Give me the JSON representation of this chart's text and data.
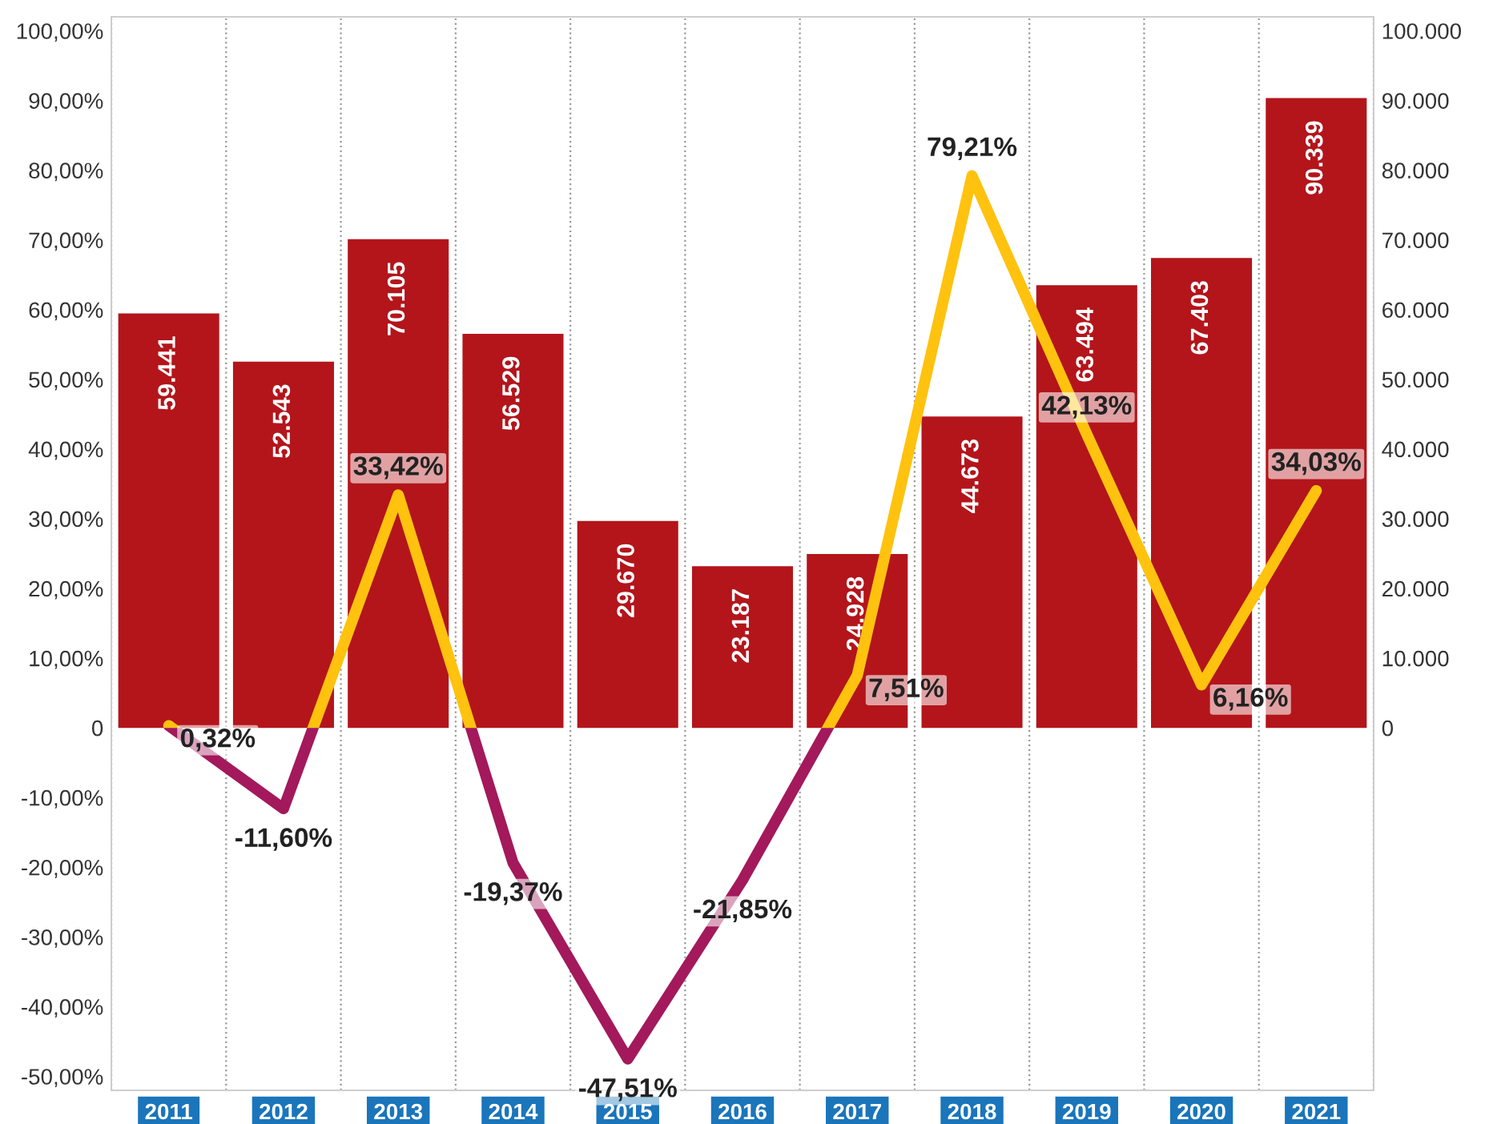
{
  "chart_data": {
    "type": "bar",
    "categories": [
      "2011",
      "2012",
      "2013",
      "2014",
      "2015",
      "2016",
      "2017",
      "2018",
      "2019",
      "2020",
      "2021"
    ],
    "series": [
      {
        "axis": "y2",
        "color": "#b3151b",
        "values": [
          59441,
          52543,
          70105,
          56529,
          29670,
          23187,
          24928,
          44673,
          63494,
          67403,
          90339
        ],
        "value_labels": [
          "59.441",
          "52.543",
          "70.105",
          "56.529",
          "29.670",
          "23.187",
          "24.928",
          "44.673",
          "63.494",
          "67.403",
          "90.339"
        ]
      },
      {
        "type": "line",
        "axis": "y",
        "color": "#ffc20e",
        "colors": [
          "#ffc20e",
          "#a3195b",
          "#ffc20e",
          "#a3195b",
          "#a3195b",
          "#a3195b",
          "#ffc20e",
          "#ffc20e",
          "#ffc20e",
          "#ffc20e",
          "#ffc20e"
        ],
        "values": [
          0.32,
          -11.6,
          33.42,
          -19.37,
          -47.51,
          -21.85,
          7.51,
          79.21,
          42.13,
          6.16,
          34.03
        ],
        "value_labels": [
          "0,32%",
          "-11,60%",
          "33,42%",
          "-19,37%",
          "-47,51%",
          "-21,85%",
          "7,51%",
          "79,21%",
          "42,13%",
          "6,16%",
          "34,03%"
        ]
      }
    ],
    "ylim": [
      -52,
      102
    ],
    "yticks": [
      {
        "value": -50,
        "label": "-50,00%"
      },
      {
        "value": -40,
        "label": "-40,00%"
      },
      {
        "value": -30,
        "label": "-30,00%"
      },
      {
        "value": -20,
        "label": "-20,00%"
      },
      {
        "value": -10,
        "label": "-10,00%"
      },
      0,
      {
        "value": 10,
        "label": "10,00%"
      },
      {
        "value": 20,
        "label": "20,00%"
      },
      {
        "value": 30,
        "label": "30,00%"
      },
      {
        "value": 40,
        "label": "40,00%"
      },
      {
        "value": 50,
        "label": "50,00%"
      },
      {
        "value": 60,
        "label": "60,00%"
      },
      {
        "value": 70,
        "label": "70,00%"
      },
      {
        "value": 80,
        "label": "80,00%"
      },
      {
        "value": 90,
        "label": "90,00%"
      },
      {
        "value": 100,
        "label": "100,00%"
      }
    ],
    "y2lim": [
      -52000,
      102000
    ],
    "y2ticks": [
      0,
      {
        "value": 10000,
        "label": "10.000"
      },
      {
        "value": 20000,
        "label": "20.000"
      },
      {
        "value": 30000,
        "label": "30.000"
      },
      {
        "value": 40000,
        "label": "40.000"
      },
      {
        "value": 50000,
        "label": "50.000"
      },
      {
        "value": 60000,
        "label": "60.000"
      },
      {
        "value": 70000,
        "label": "70.000"
      },
      {
        "value": 80000,
        "label": "80.000"
      },
      {
        "value": 90000,
        "label": "90.000"
      },
      {
        "value": 100000,
        "label": "100.000"
      }
    ],
    "grid": "x"
  }
}
